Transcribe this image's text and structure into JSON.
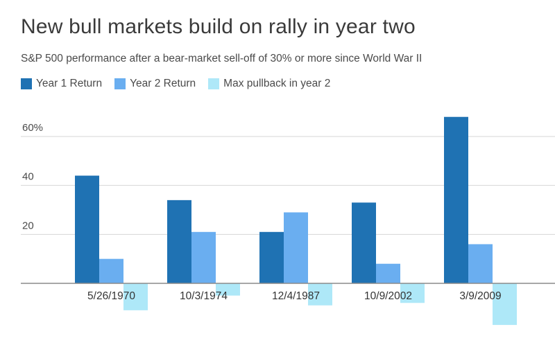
{
  "title": "New bull markets build on rally in year two",
  "subtitle": "S&P 500 performance after a bear-market sell-off of 30% or more since World War II",
  "legend": [
    {
      "label": "Year 1 Return",
      "color": "#1f72b3"
    },
    {
      "label": "Year 2 Return",
      "color": "#6aaef0"
    },
    {
      "label": "Max pullback in year 2",
      "color": "#aee8f8"
    }
  ],
  "chart_data": {
    "type": "bar",
    "categories": [
      "5/26/1970",
      "10/3/1974",
      "12/4/1987",
      "10/9/2002",
      "3/9/2009"
    ],
    "series": [
      {
        "name": "Year 1 Return",
        "values": [
          44,
          34,
          21,
          33,
          68
        ],
        "color": "#1f72b3"
      },
      {
        "name": "Year 2 Return",
        "values": [
          10,
          21,
          29,
          8,
          16
        ],
        "color": "#6aaef0"
      },
      {
        "name": "Max pullback in year 2",
        "values": [
          -11,
          -5,
          -9,
          -8,
          -17
        ],
        "color": "#aee8f8"
      }
    ],
    "yticks": [
      {
        "value": 20,
        "label": "20"
      },
      {
        "value": 40,
        "label": "40"
      },
      {
        "value": 60,
        "label": "60%"
      }
    ],
    "ylim": [
      -18,
      70
    ],
    "grid": true,
    "legend_position": "top-left"
  }
}
